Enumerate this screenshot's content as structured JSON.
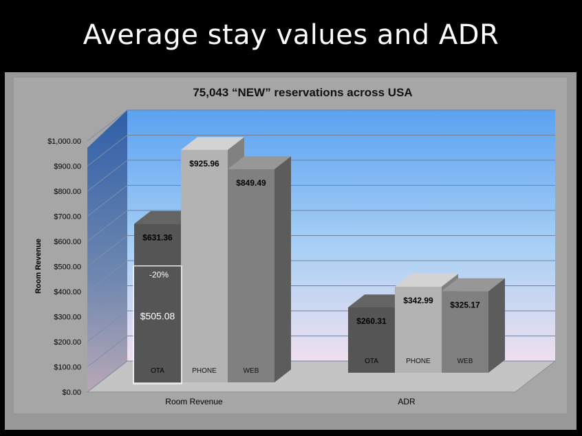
{
  "slide": {
    "title": "Average stay values and ADR"
  },
  "chart_data": {
    "type": "bar",
    "title": "75,043 “NEW” reservations across USA",
    "ylabel": "Room Revenue",
    "xlabel": "",
    "categories": [
      "Room Revenue",
      "ADR"
    ],
    "series": [
      {
        "name": "OTA",
        "values": [
          631.36,
          260.31
        ],
        "labels": [
          "$631.36",
          "$260.31"
        ],
        "color": "#555555"
      },
      {
        "name": "PHONE",
        "values": [
          925.96,
          342.99
        ],
        "labels": [
          "$925.96",
          "$342.99"
        ],
        "color": "#b3b3b3"
      },
      {
        "name": "WEB",
        "values": [
          849.49,
          325.17
        ],
        "labels": [
          "$849.49",
          "$325.17"
        ],
        "color": "#808080"
      }
    ],
    "ylim": [
      0,
      1000
    ],
    "yticks": [
      "$0.00",
      "$100.00",
      "$200.00",
      "$300.00",
      "$400.00",
      "$500.00",
      "$600.00",
      "$700.00",
      "$800.00",
      "$900.00",
      "$1,000.00"
    ],
    "grid": true,
    "legend": "none",
    "annotation": {
      "value": 505.08,
      "label": "$505.08",
      "change": "-20%",
      "category": "Room Revenue",
      "series": "OTA"
    }
  }
}
